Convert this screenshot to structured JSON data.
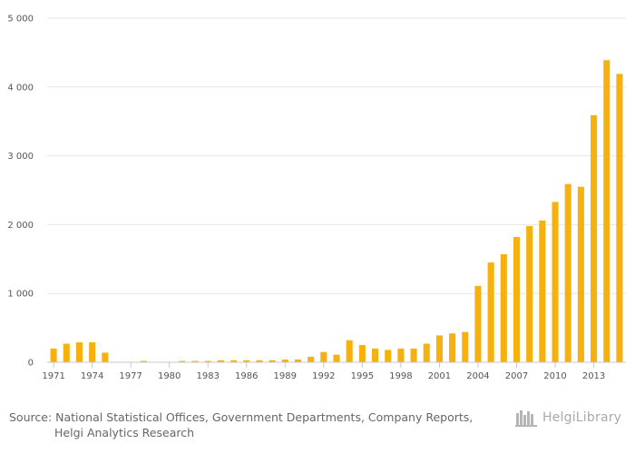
{
  "chart_data": {
    "type": "bar",
    "title": "",
    "xlabel": "",
    "ylabel": "",
    "ylim": [
      0,
      5000
    ],
    "yticks": [
      0,
      1000,
      2000,
      3000,
      4000,
      5000
    ],
    "ytick_labels": [
      "0",
      "1 000",
      "2 000",
      "3 000",
      "4 000",
      "5 000"
    ],
    "categories": [
      1971,
      1972,
      1973,
      1974,
      1975,
      1976,
      1977,
      1978,
      1979,
      1980,
      1981,
      1982,
      1983,
      1984,
      1985,
      1986,
      1987,
      1988,
      1989,
      1990,
      1991,
      1992,
      1993,
      1994,
      1995,
      1996,
      1997,
      1998,
      1999,
      2000,
      2001,
      2002,
      2003,
      2004,
      2005,
      2006,
      2007,
      2008,
      2009,
      2010,
      2011,
      2012,
      2013,
      2014,
      2015
    ],
    "xtick_labels": [
      "1971",
      "1974",
      "1977",
      "1980",
      "1983",
      "1986",
      "1989",
      "1992",
      "1995",
      "1998",
      "2001",
      "2004",
      "2007",
      "2010",
      "2013"
    ],
    "values": [
      200,
      270,
      290,
      290,
      140,
      5,
      5,
      20,
      5,
      5,
      20,
      20,
      20,
      30,
      30,
      30,
      30,
      30,
      40,
      40,
      80,
      150,
      110,
      320,
      250,
      200,
      180,
      200,
      200,
      270,
      390,
      420,
      440,
      1110,
      1450,
      1570,
      1820,
      1980,
      2060,
      2330,
      2590,
      2550,
      3590,
      4390,
      4190
    ],
    "bar_color": "#f6b10f",
    "grid": true
  },
  "footer": {
    "source_label": "Source:",
    "source_line1": "National Statistical Offices, Government Departments, Company Reports,",
    "source_line2": "Helgi Analytics Research",
    "logo_text": "HelgiLibrary"
  }
}
